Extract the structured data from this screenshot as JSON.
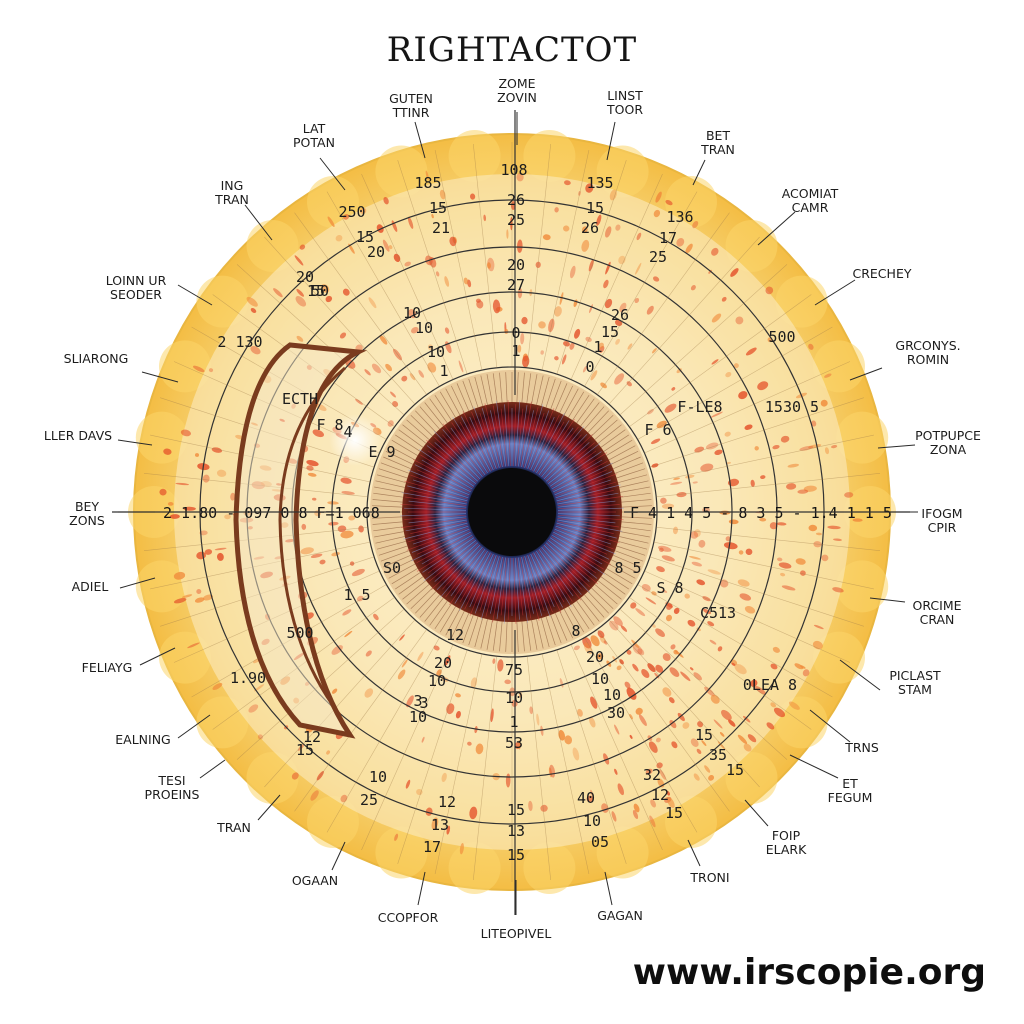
{
  "title": "RIGHTACTOT",
  "website": "www.irscopie.org",
  "colors": {
    "outer_band": "#f9c84e",
    "field": "#f8e6b5",
    "speckle": "#e4512a",
    "pupil": "#0b0b0e",
    "iris_inner": "#4a5ea8",
    "collarette": "#b3202a",
    "arc": "#7a3b1e"
  },
  "zone_labels": [
    {
      "lines": [
        "ZOME",
        "ZOVIN"
      ]
    },
    {
      "lines": [
        "LINST",
        "TOOR"
      ]
    },
    {
      "lines": [
        "BET",
        "TRAN"
      ]
    },
    {
      "lines": [
        "ACOMIAT",
        "CAMR"
      ]
    },
    {
      "lines": [
        "CRECHEY"
      ]
    },
    {
      "lines": [
        "GRCONYS.",
        "ROMIN"
      ]
    },
    {
      "lines": [
        "POTPUPCE",
        "ZONA"
      ]
    },
    {
      "lines": [
        "IFOGM",
        "CPIR"
      ]
    },
    {
      "lines": [
        "ORCIME",
        "CRAN"
      ]
    },
    {
      "lines": [
        "PICLAST",
        "STAM"
      ]
    },
    {
      "lines": [
        "TRNS"
      ]
    },
    {
      "lines": [
        "ET",
        "FEGUM"
      ]
    },
    {
      "lines": [
        "FOIP",
        "ELARK"
      ]
    },
    {
      "lines": [
        "TRONI"
      ]
    },
    {
      "lines": [
        "GAGAN"
      ]
    },
    {
      "lines": [
        "LITEOPIVEL"
      ]
    },
    {
      "lines": [
        "CCOPFOR"
      ]
    },
    {
      "lines": [
        "OGAAN"
      ]
    },
    {
      "lines": [
        "TRAN"
      ]
    },
    {
      "lines": [
        "TESI",
        "PROEINS"
      ]
    },
    {
      "lines": [
        "EALNING"
      ]
    },
    {
      "lines": [
        "FELIAYG"
      ]
    },
    {
      "lines": [
        "ADIEL"
      ]
    },
    {
      "lines": [
        "BEY",
        "ZONS"
      ]
    },
    {
      "lines": [
        "LLER DAVS"
      ]
    },
    {
      "lines": [
        "SLIARONG"
      ]
    },
    {
      "lines": [
        "LOINN UR",
        "SEODER"
      ]
    },
    {
      "lines": [
        "ING",
        "TRAN"
      ]
    },
    {
      "lines": [
        "LAT",
        "POTAN"
      ]
    },
    {
      "lines": [
        "GUTEN",
        "TTINR"
      ]
    }
  ],
  "ring_numbers": [
    {
      "text": "108"
    },
    {
      "text": "26"
    },
    {
      "text": "25"
    },
    {
      "text": "20"
    },
    {
      "text": "27"
    },
    {
      "text": "0"
    },
    {
      "text": "1"
    },
    {
      "text": "185"
    },
    {
      "text": "15"
    },
    {
      "text": "21"
    },
    {
      "text": "250"
    },
    {
      "text": "15"
    },
    {
      "text": "20"
    },
    {
      "text": "135"
    },
    {
      "text": "15"
    },
    {
      "text": "26"
    },
    {
      "text": "136"
    },
    {
      "text": "17"
    },
    {
      "text": "25"
    },
    {
      "text": "26"
    },
    {
      "text": "15"
    },
    {
      "text": "1"
    },
    {
      "text": "0"
    },
    {
      "text": "20"
    },
    {
      "text": "15"
    },
    {
      "text": "50"
    },
    {
      "text": "10"
    },
    {
      "text": "10"
    },
    {
      "text": "10"
    },
    {
      "text": "1"
    },
    {
      "text": "2 130"
    },
    {
      "text": "500"
    },
    {
      "text": "1530 5"
    },
    {
      "text": "ECTH"
    },
    {
      "text": "F 8"
    },
    {
      "text": "4"
    },
    {
      "text": "F 6"
    },
    {
      "text": "F-LE8"
    },
    {
      "text": "75"
    },
    {
      "text": "10"
    },
    {
      "text": "1"
    },
    {
      "text": "53"
    },
    {
      "text": "20"
    },
    {
      "text": "10"
    },
    {
      "text": "3"
    },
    {
      "text": "10"
    },
    {
      "text": "20"
    },
    {
      "text": "10"
    },
    {
      "text": "30"
    },
    {
      "text": "10"
    },
    {
      "text": "12"
    },
    {
      "text": "15"
    },
    {
      "text": "10"
    },
    {
      "text": "25"
    },
    {
      "text": "12"
    },
    {
      "text": "13"
    },
    {
      "text": "17"
    },
    {
      "text": "15"
    },
    {
      "text": "13"
    },
    {
      "text": "15"
    },
    {
      "text": "40"
    },
    {
      "text": "10"
    },
    {
      "text": "05"
    },
    {
      "text": "32"
    },
    {
      "text": "12"
    },
    {
      "text": "15"
    },
    {
      "text": "15"
    },
    {
      "text": "35"
    },
    {
      "text": "15"
    },
    {
      "text": "1.90"
    },
    {
      "text": "0LEA 8"
    },
    {
      "text": "500"
    },
    {
      "text": "S 8"
    },
    {
      "text": "C513"
    },
    {
      "text": "S0"
    },
    {
      "text": "8 5"
    },
    {
      "text": "1 5"
    },
    {
      "text": "E 9"
    },
    {
      "text": "12"
    },
    {
      "text": "8"
    },
    {
      "text": "3"
    }
  ],
  "horizontal_left": "2 1.80 - 097 0 8 F=1 068",
  "horizontal_right": "F 4 1 4 5 - 8 3 5 - 1.4 1 1 5",
  "center_marks": [
    "20",
    "27",
    "0",
    "1"
  ]
}
